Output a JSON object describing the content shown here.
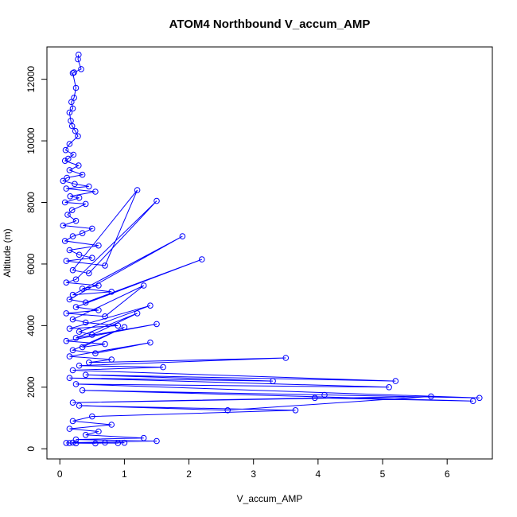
{
  "chart_data": {
    "type": "scatter",
    "title": "ATOM4 Northbound V_accum_AMP",
    "xlabel": "V_accum_AMP",
    "ylabel": "Altitude (m)",
    "xlim": [
      -0.2,
      6.7
    ],
    "ylim": [
      -330,
      13050
    ],
    "xticks": [
      0,
      1,
      2,
      3,
      4,
      5,
      6
    ],
    "yticks": [
      0,
      2000,
      4000,
      6000,
      8000,
      10000,
      12000
    ],
    "color": "#0000ff",
    "grid": false,
    "series": [
      {
        "x": [
          0.29,
          0.28,
          0.33,
          0.22,
          0.2,
          0.25,
          0.22,
          0.18,
          0.2,
          0.15,
          0.17,
          0.19,
          0.24,
          0.28,
          0.15,
          0.09,
          0.21,
          0.13,
          0.08,
          0.29,
          0.15,
          0.35,
          0.11,
          0.05,
          0.23,
          0.45,
          0.1,
          0.55,
          0.16,
          0.3,
          0.08,
          0.4,
          0.19,
          0.12,
          0.25,
          0.05,
          0.5,
          0.35,
          0.2,
          0.08,
          0.6,
          0.15,
          0.3,
          0.5,
          0.1,
          0.7,
          1.2,
          0.2,
          0.45,
          1.5,
          0.25,
          0.1,
          0.6,
          0.35,
          0.8,
          0.2,
          1.9,
          0.15,
          0.4,
          2.2,
          0.25,
          0.6,
          0.1,
          0.7,
          1.3,
          0.2,
          0.4,
          0.9,
          0.15,
          1.4,
          0.3,
          0.5,
          1.2,
          0.25,
          1.5,
          0.1,
          0.7,
          0.35,
          1.0,
          0.2,
          0.55,
          1.4,
          0.15,
          0.8,
          0.45,
          3.5,
          0.3,
          1.6,
          0.2,
          5.2,
          0.4,
          3.3,
          0.15,
          5.1,
          0.25,
          6.5,
          4.1,
          0.35,
          6.4,
          3.95,
          0.2,
          5.75,
          2.6,
          0.3,
          3.65,
          0.5,
          0.2,
          0.8,
          0.15,
          0.6,
          0.4,
          1.3,
          0.25,
          1.5,
          0.2,
          0.9,
          0.1,
          0.7,
          0.15,
          1.0,
          0.25,
          0.55
        ],
        "y": [
          12800,
          12650,
          12330,
          12220,
          12200,
          11720,
          11400,
          11260,
          11050,
          10920,
          10650,
          10480,
          10320,
          10150,
          9900,
          9700,
          9550,
          9420,
          9350,
          9200,
          9050,
          8900,
          8800,
          8700,
          8600,
          8520,
          8450,
          8350,
          8200,
          8150,
          8000,
          7950,
          7750,
          7600,
          7400,
          7250,
          7150,
          7000,
          6900,
          6750,
          6600,
          6450,
          6300,
          6200,
          6100,
          5950,
          8400,
          5800,
          5700,
          8050,
          5500,
          5400,
          5300,
          5200,
          5100,
          5000,
          6900,
          4850,
          4750,
          6150,
          4600,
          4500,
          4400,
          4300,
          5300,
          4200,
          4100,
          4000,
          3900,
          4650,
          3800,
          3700,
          4400,
          3600,
          4050,
          3500,
          3400,
          3300,
          3950,
          3200,
          3100,
          3450,
          3000,
          2900,
          2800,
          2950,
          2700,
          2650,
          2550,
          2200,
          2400,
          2200,
          2300,
          2000,
          2100,
          1650,
          1750,
          1900,
          1550,
          1650,
          1500,
          1700,
          1250,
          1400,
          1250,
          1050,
          900,
          780,
          650,
          560,
          450,
          350,
          300,
          250,
          200,
          185,
          190,
          200,
          185,
          195,
          180,
          175
        ]
      }
    ]
  }
}
